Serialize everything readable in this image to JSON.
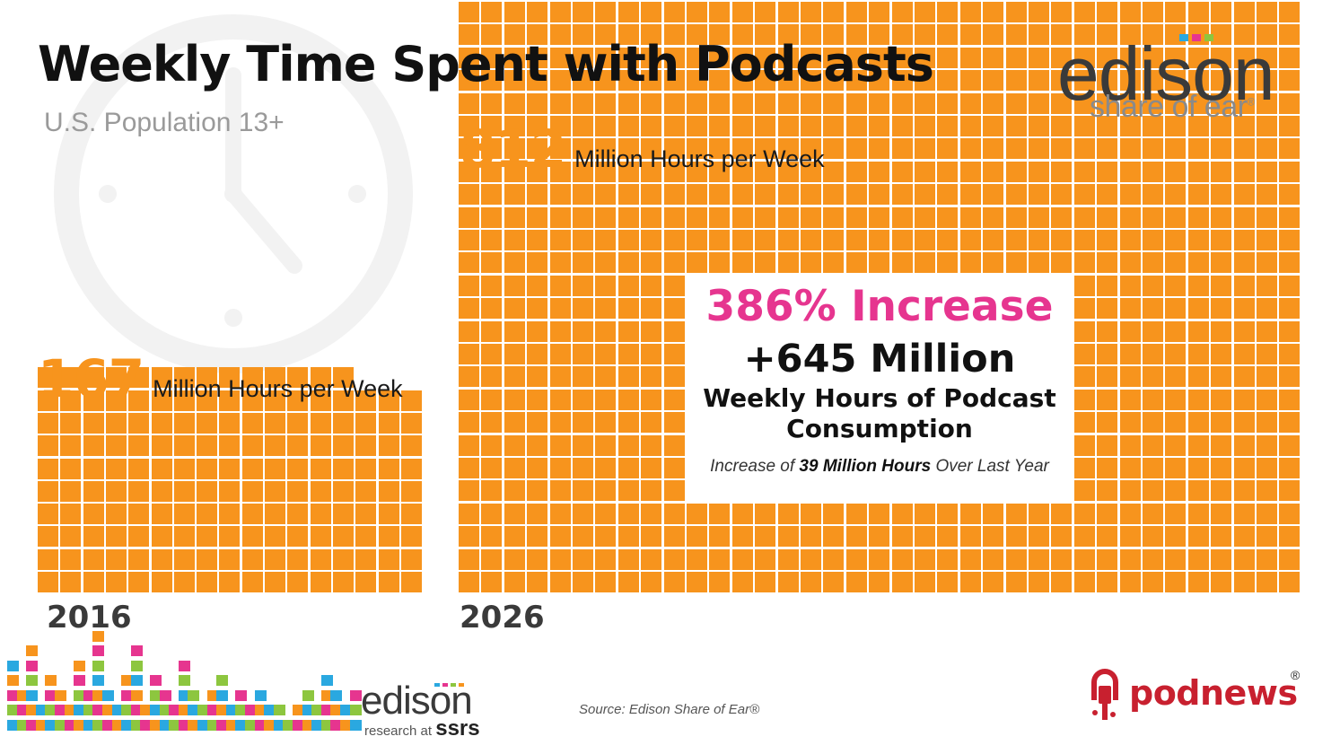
{
  "header": {
    "title": "Weekly Time Spent with Podcasts",
    "subtitle": "U.S. Population 13+"
  },
  "brand": {
    "name": "edison",
    "tagline": "share of ear",
    "registered": "®",
    "dot_colors": [
      "#2aa8e0",
      "#e6358f",
      "#8dc63f",
      "#f7941d"
    ]
  },
  "colors": {
    "bar": "#f7941d",
    "highlight": "#e6358f"
  },
  "chart_data": {
    "type": "bar",
    "categories": [
      "2016",
      "2026"
    ],
    "values": [
      167,
      812
    ],
    "units": "Million Hours per Week",
    "periods": [
      {
        "year": "2016",
        "value": "167",
        "unit": "Million Hours per Week"
      },
      {
        "year": "2026",
        "value": "812",
        "unit": "Million Hours per Week"
      }
    ],
    "callout": {
      "increase": "386% Increase",
      "added": "+645 Million",
      "added_desc_line1": "Weekly Hours of Podcast",
      "added_desc_line2": "Consumption",
      "note_prefix": "Increase of",
      "note_bold": "39 Million Hours",
      "note_suffix": "Over Last Year"
    }
  },
  "footer": {
    "source": "Source: Edison Share of Ear®",
    "edison_word": "edison",
    "edison_sub": "research at",
    "edison_sub_bold": "ssrs",
    "podnews": "podnews",
    "podnews_reg": "®",
    "bar_colors": [
      "#2aa8e0",
      "#8dc63f",
      "#e6358f",
      "#f7941d"
    ]
  }
}
